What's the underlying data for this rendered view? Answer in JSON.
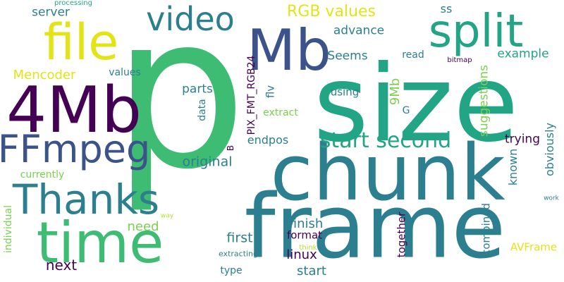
{
  "palette": {
    "dark_purple": "#440154",
    "indigo": "#3b528b",
    "teal": "#2c7f8e",
    "teal_green": "#21a585",
    "green": "#3fbc73",
    "light_green": "#7ad151",
    "lime": "#b5de2b",
    "yellow": "#e2e418"
  },
  "words": [
    {
      "text": "p"
    },
    {
      "text": "size"
    },
    {
      "text": "frame"
    },
    {
      "text": "chunk"
    },
    {
      "text": "time"
    },
    {
      "text": "4Mb"
    },
    {
      "text": "Mb"
    },
    {
      "text": "split"
    },
    {
      "text": "file"
    },
    {
      "text": "FFmpeg"
    },
    {
      "text": "Thanks"
    },
    {
      "text": "video"
    },
    {
      "text": "start second"
    },
    {
      "text": "RGB values"
    },
    {
      "text": "Mencoder"
    },
    {
      "text": "advance"
    },
    {
      "text": "Seems"
    },
    {
      "text": "example"
    },
    {
      "text": "server"
    },
    {
      "text": "values"
    },
    {
      "text": "parts"
    },
    {
      "text": "data"
    },
    {
      "text": "PIX_FMT_RGB24"
    },
    {
      "text": "flv"
    },
    {
      "text": "using"
    },
    {
      "text": "9Mb"
    },
    {
      "text": "extract"
    },
    {
      "text": "G"
    },
    {
      "text": "suggestions"
    },
    {
      "text": "endpos"
    },
    {
      "text": "trying"
    },
    {
      "text": "obviously"
    },
    {
      "text": "original"
    },
    {
      "text": "known"
    },
    {
      "text": "currently"
    },
    {
      "text": "B"
    },
    {
      "text": "individual"
    },
    {
      "text": "need"
    },
    {
      "text": "first"
    },
    {
      "text": "finish"
    },
    {
      "text": "format"
    },
    {
      "text": "combined"
    },
    {
      "text": "linux"
    },
    {
      "text": "together"
    },
    {
      "text": "AVFrame"
    },
    {
      "text": "next"
    },
    {
      "text": "start"
    },
    {
      "text": "type"
    },
    {
      "text": "extracting"
    },
    {
      "text": "think"
    },
    {
      "text": "way"
    },
    {
      "text": "work"
    },
    {
      "text": "processing"
    },
    {
      "text": "ss"
    },
    {
      "text": "read"
    },
    {
      "text": "bitmap"
    }
  ]
}
